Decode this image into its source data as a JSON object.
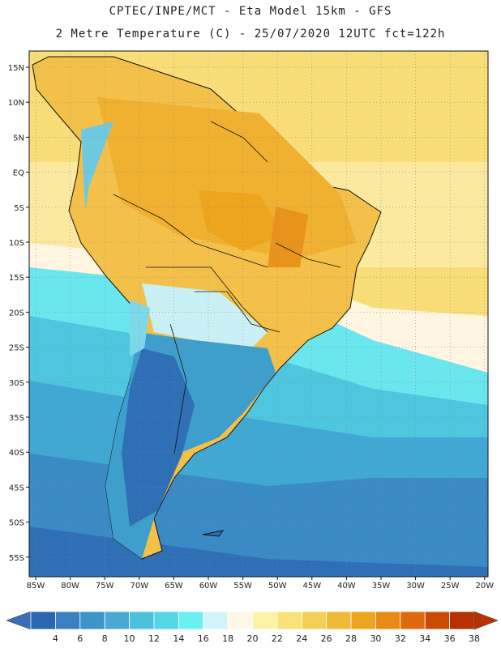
{
  "header": {
    "title_line1": "CPTEC/INPE/MCT -  Eta Model 15km - GFS",
    "title_line2": "2 Metre Temperature (C) - 25/07/2020 12UTC fct=122h"
  },
  "map": {
    "lat_labels": [
      "15N",
      "10N",
      "5N",
      "EQ",
      "5S",
      "10S",
      "15S",
      "20S",
      "25S",
      "30S",
      "35S",
      "40S",
      "45S",
      "50S",
      "55S"
    ],
    "lon_labels": [
      "85W",
      "80W",
      "75W",
      "70W",
      "65W",
      "60W",
      "55W",
      "50W",
      "45W",
      "40W",
      "35W",
      "30W",
      "25W",
      "20W"
    ],
    "ocean_color": "#3e94c9",
    "land_warm_color": "#f0b030"
  },
  "colorbar": {
    "labels": [
      "4",
      "6",
      "8",
      "10",
      "12",
      "14",
      "16",
      "18",
      "20",
      "22",
      "24",
      "26",
      "28",
      "30",
      "32",
      "34",
      "36",
      "38"
    ],
    "colors": [
      "#2b66b0",
      "#3a80c0",
      "#3b95c8",
      "#48aad2",
      "#4cc0dc",
      "#55d6e6",
      "#6bf0f2",
      "#d2f4f8",
      "#fff8e6",
      "#fdf3a8",
      "#f9e27a",
      "#f4cf55",
      "#efba38",
      "#eca51c",
      "#e88a16",
      "#df6a0e",
      "#cc4a08",
      "#b63205"
    ],
    "low_arrow_color": "#3a6fb8",
    "high_arrow_color": "#b63205"
  }
}
